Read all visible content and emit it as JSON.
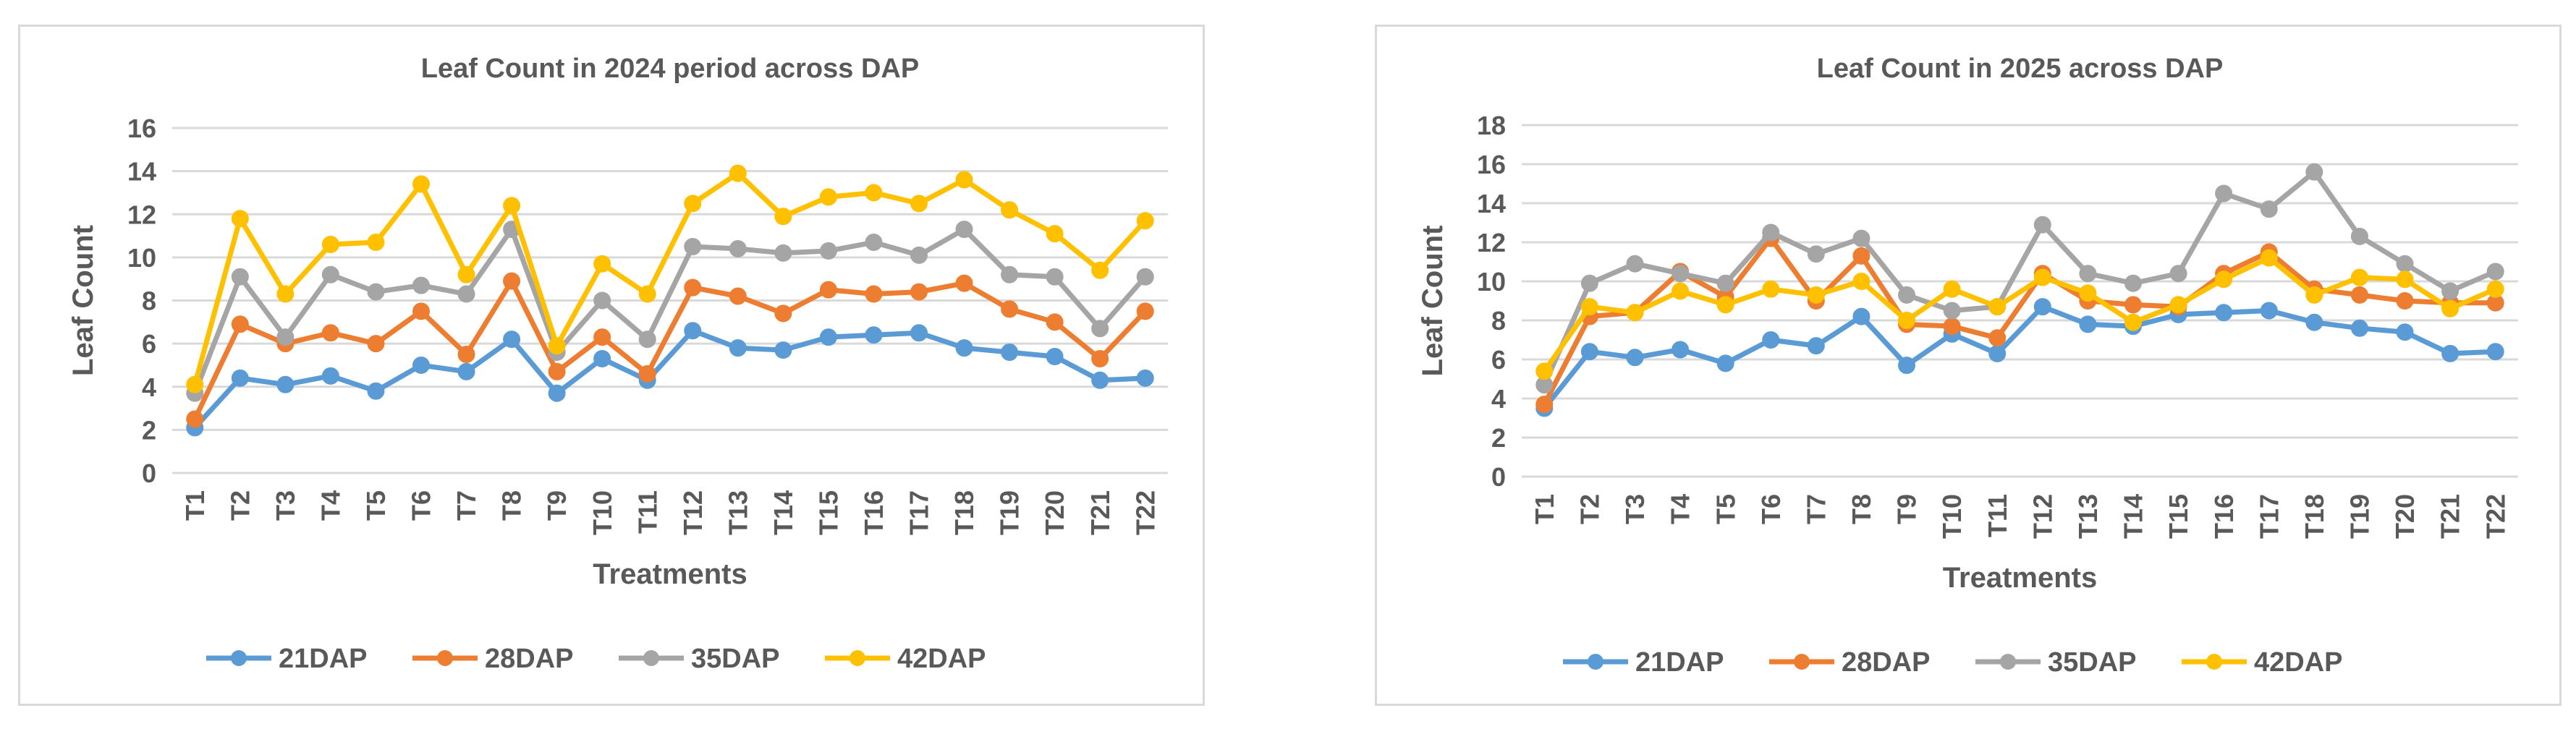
{
  "chart_data": [
    {
      "type": "line",
      "title": "Leaf Count in 2024 period across DAP",
      "xlabel": "Treatments",
      "ylabel": "Leaf Count",
      "ylim": [
        0,
        16
      ],
      "yticks": [
        0,
        2,
        4,
        6,
        8,
        10,
        12,
        14,
        16
      ],
      "grid": true,
      "legend": "bottom",
      "categories": [
        "T1",
        "T2",
        "T3",
        "T4",
        "T5",
        "T6",
        "T7",
        "T8",
        "T9",
        "T10",
        "T11",
        "T12",
        "T13",
        "T14",
        "T15",
        "T16",
        "T17",
        "T18",
        "T19",
        "T20",
        "T21",
        "T22"
      ],
      "series": [
        {
          "name": "21DAP",
          "color": "#5b9bd5",
          "values": [
            2.1,
            4.4,
            4.1,
            4.5,
            3.8,
            5.0,
            4.7,
            6.2,
            3.7,
            5.3,
            4.3,
            6.6,
            5.8,
            5.7,
            6.3,
            6.4,
            6.5,
            5.8,
            5.6,
            5.4,
            4.3,
            4.4
          ]
        },
        {
          "name": "28DAP",
          "color": "#ed7d31",
          "values": [
            2.5,
            6.9,
            6.0,
            6.5,
            6.0,
            7.5,
            5.5,
            8.9,
            4.7,
            6.3,
            4.6,
            8.6,
            8.2,
            7.4,
            8.5,
            8.3,
            8.4,
            8.8,
            7.6,
            7.0,
            5.3,
            7.5
          ]
        },
        {
          "name": "35DAP",
          "color": "#a5a5a5",
          "values": [
            3.7,
            9.1,
            6.3,
            9.2,
            8.4,
            8.7,
            8.3,
            11.3,
            5.6,
            8.0,
            6.2,
            10.5,
            10.4,
            10.2,
            10.3,
            10.7,
            10.1,
            11.3,
            9.2,
            9.1,
            6.7,
            9.1
          ]
        },
        {
          "name": "42DAP",
          "color": "#ffc000",
          "values": [
            4.1,
            11.8,
            8.3,
            10.6,
            10.7,
            13.4,
            9.2,
            12.4,
            5.9,
            9.7,
            8.3,
            12.5,
            13.9,
            11.9,
            12.8,
            13.0,
            12.5,
            13.6,
            12.2,
            11.1,
            9.4,
            11.7
          ]
        }
      ]
    },
    {
      "type": "line",
      "title": "Leaf Count in 2025 across DAP",
      "xlabel": "Treatments",
      "ylabel": "Leaf Count",
      "ylim": [
        0,
        18
      ],
      "yticks": [
        0,
        2,
        4,
        6,
        8,
        10,
        12,
        14,
        16,
        18
      ],
      "grid": true,
      "legend": "bottom",
      "categories": [
        "T1",
        "T2",
        "T3",
        "T4",
        "T5",
        "T6",
        "T7",
        "T8",
        "T9",
        "T10",
        "T11",
        "T12",
        "T13",
        "T14",
        "T15",
        "T16",
        "T17",
        "T18",
        "T19",
        "T20",
        "T21",
        "T22"
      ],
      "series": [
        {
          "name": "21DAP",
          "color": "#5b9bd5",
          "values": [
            3.5,
            6.4,
            6.1,
            6.5,
            5.8,
            7.0,
            6.7,
            8.2,
            5.7,
            7.3,
            6.3,
            8.7,
            7.8,
            7.7,
            8.3,
            8.4,
            8.5,
            7.9,
            7.6,
            7.4,
            6.3,
            6.4
          ]
        },
        {
          "name": "28DAP",
          "color": "#ed7d31",
          "values": [
            3.7,
            8.2,
            8.4,
            10.5,
            9.2,
            12.2,
            9.0,
            11.3,
            7.8,
            7.7,
            7.1,
            10.4,
            9.0,
            8.8,
            8.7,
            10.4,
            11.5,
            9.6,
            9.3,
            9.0,
            8.9,
            8.9
          ]
        },
        {
          "name": "35DAP",
          "color": "#a5a5a5",
          "values": [
            4.7,
            9.9,
            10.9,
            10.4,
            9.9,
            12.5,
            11.4,
            12.2,
            9.3,
            8.5,
            8.7,
            12.9,
            10.4,
            9.9,
            10.4,
            14.5,
            13.7,
            15.6,
            12.3,
            10.9,
            9.5,
            10.5
          ]
        },
        {
          "name": "42DAP",
          "color": "#ffc000",
          "values": [
            5.4,
            8.7,
            8.4,
            9.5,
            8.8,
            9.6,
            9.3,
            10.0,
            8.0,
            9.6,
            8.7,
            10.2,
            9.4,
            7.9,
            8.8,
            10.1,
            11.2,
            9.3,
            10.2,
            10.1,
            8.6,
            9.6
          ]
        }
      ]
    }
  ]
}
